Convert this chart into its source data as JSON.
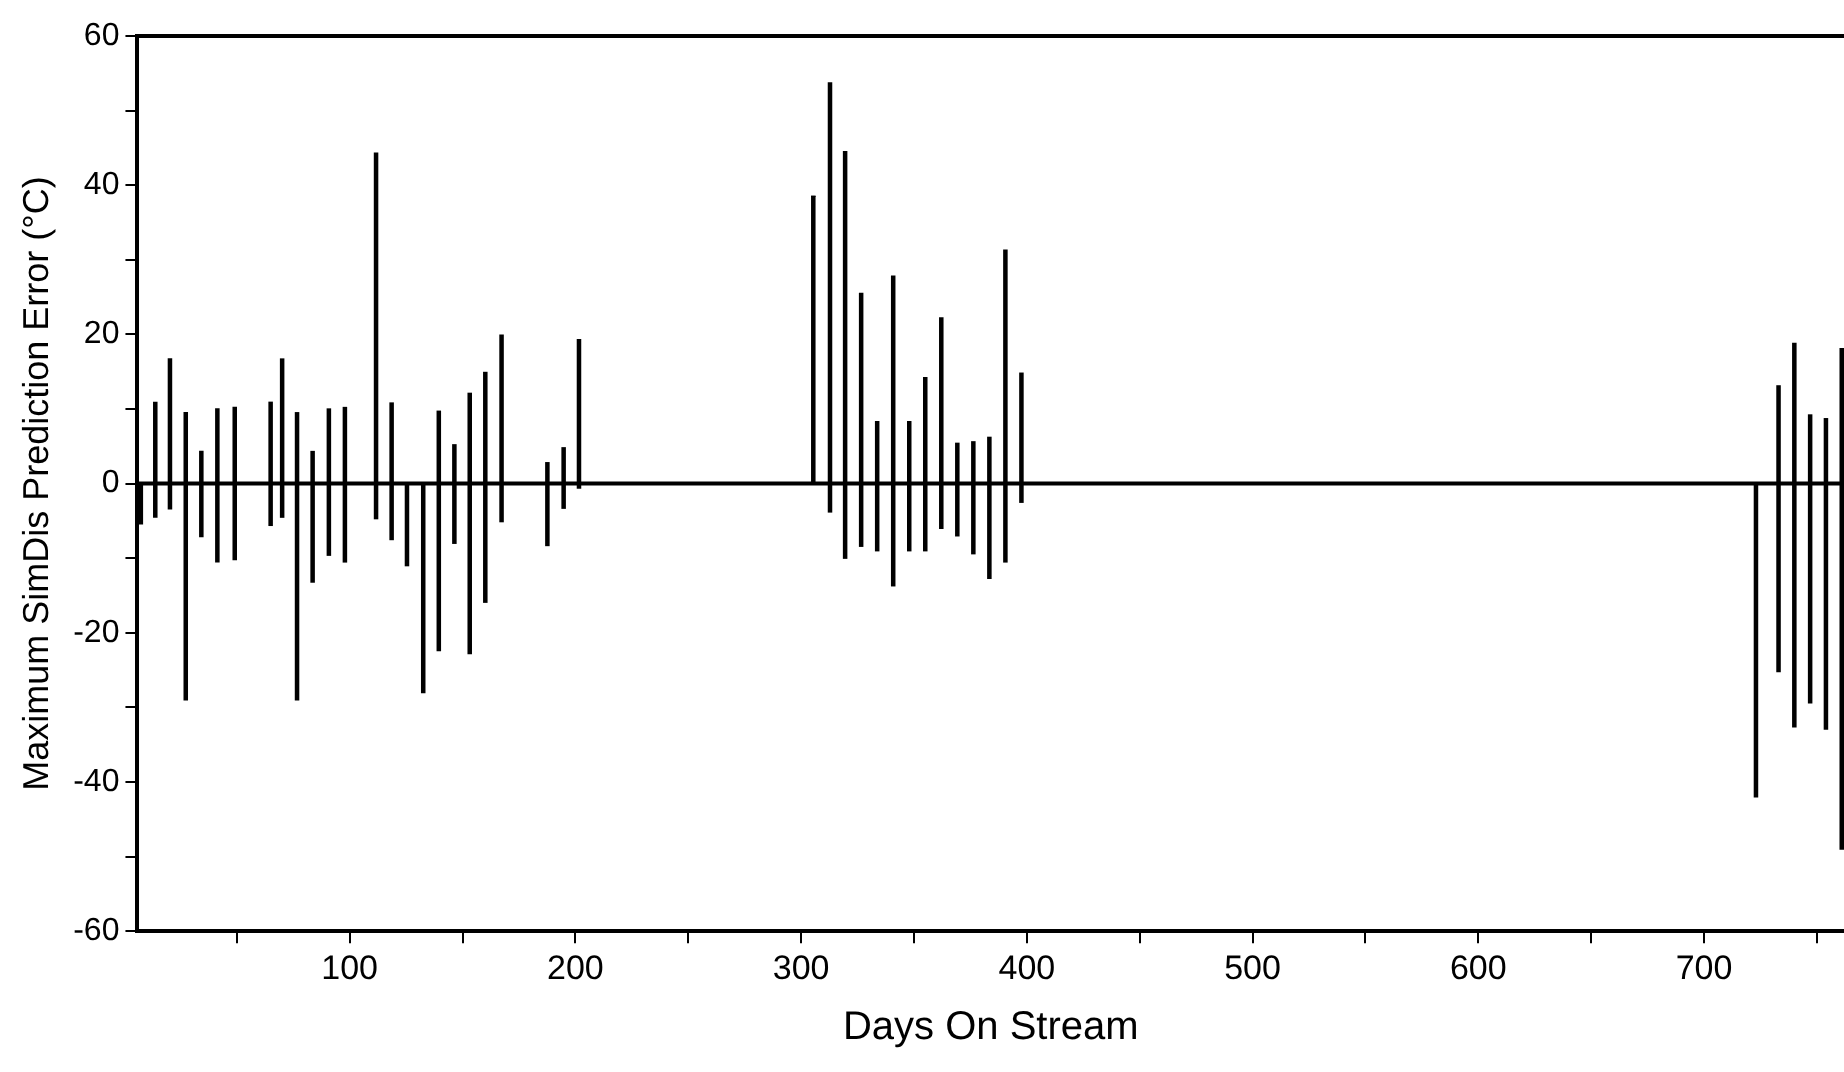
{
  "chart_data": {
    "type": "bar",
    "xlabel": "Days On Stream",
    "ylabel": "Maximum SimDis Prediction Error (°C)",
    "x": [
      7.5,
      13.9,
      20.4,
      27.4,
      34.3,
      41.4,
      49.1,
      65,
      70.1,
      76.7,
      83.6,
      90.8,
      97.9,
      111.7,
      118.6,
      125.4,
      132.6,
      139.5,
      146.4,
      153.2,
      160.1,
      167.3,
      187.6,
      194.8,
      201.6,
      305.4,
      312.8,
      319.5,
      326.6,
      333.7,
      340.8,
      347.9,
      355,
      362.1,
      369.2,
      376.3,
      383.4,
      390.5,
      397.6,
      723,
      733,
      740,
      747,
      754,
      761
    ],
    "stacked": true,
    "series": [
      {
        "color": "#000000",
        "values": [
          0,
          10.9,
          16.7,
          9.5,
          4.3,
          10,
          10.2,
          10.9,
          16.7,
          9.5,
          4.3,
          10,
          10.2,
          44.3,
          10.8,
          0,
          0,
          9.7,
          5.2,
          12.1,
          14.9,
          19.9,
          2.8,
          4.8,
          19.3,
          38.5,
          53.7,
          44.5,
          25.5,
          8.3,
          27.8,
          8.3,
          14.2,
          22.2,
          5.4,
          5.6,
          6.2,
          31.3,
          14.8,
          0,
          13.1,
          18.8,
          9.2,
          8.7,
          18.1
        ]
      },
      {
        "color": "#000000",
        "values": [
          -5.4,
          -4.5,
          -3.4,
          -29,
          -7.1,
          -10.5,
          -10.2,
          -5.6,
          -4.5,
          -29,
          -13.2,
          -9.6,
          -10.5,
          -4.7,
          -7.5,
          -11,
          -28,
          -22.4,
          -8,
          -22.8,
          -15.9,
          -5.1,
          -8.3,
          -3.3,
          -0.6,
          0,
          -3.8,
          -10,
          -8.4,
          -9,
          -13.7,
          -9,
          -9,
          -6,
          -7,
          -9.4,
          -12.7,
          -10.5,
          -2.5,
          -42,
          -25.2,
          -32.6,
          -29.4,
          -32.9,
          -49
        ]
      }
    ],
    "xlim": [
      6,
      762
    ],
    "xticks": [
      {
        "value": 50,
        "label": null
      },
      100,
      {
        "value": 150,
        "label": null
      },
      200,
      {
        "value": 250,
        "label": null
      },
      300,
      {
        "value": 350,
        "label": null
      },
      400,
      {
        "value": 450,
        "label": null
      },
      500,
      {
        "value": 550,
        "label": null
      },
      600,
      {
        "value": 650,
        "label": null
      },
      700,
      {
        "value": 750,
        "label": null
      }
    ],
    "ylim": [
      -60,
      60
    ],
    "yticks": [
      -60,
      {
        "value": -50,
        "label": null
      },
      -40,
      {
        "value": -30,
        "label": null
      },
      -20,
      {
        "value": -10,
        "label": null
      },
      0,
      {
        "value": 10,
        "label": null
      },
      20,
      {
        "value": 30,
        "label": null
      },
      40,
      {
        "value": 50,
        "label": null
      },
      60
    ],
    "ref_lines": [
      {
        "axis": "y",
        "value": 0,
        "color": "#000000"
      }
    ],
    "grid": false,
    "legend": false
  }
}
